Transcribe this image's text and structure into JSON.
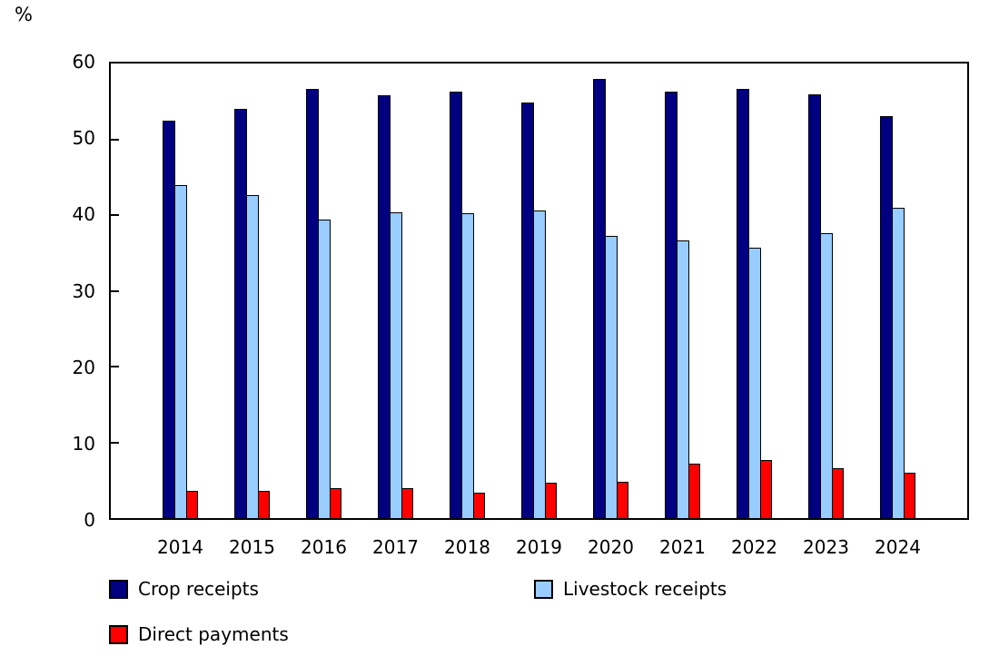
{
  "unit_label": "%",
  "chart_data": {
    "type": "bar",
    "title": "",
    "xlabel": "",
    "ylabel": "%",
    "ylim": [
      0,
      60
    ],
    "yticks": [
      0,
      10,
      20,
      30,
      40,
      50,
      60
    ],
    "grid": false,
    "legend_position": "bottom",
    "categories": [
      "2014",
      "2015",
      "2016",
      "2017",
      "2018",
      "2019",
      "2020",
      "2021",
      "2022",
      "2023",
      "2024"
    ],
    "series": [
      {
        "name": "Crop receipts",
        "color": "#000080",
        "values": [
          52.4,
          54.0,
          56.7,
          55.8,
          56.3,
          54.8,
          58.0,
          56.3,
          56.7,
          55.9,
          53.0
        ]
      },
      {
        "name": "Livestock receipts",
        "color": "#99CCFF",
        "values": [
          44.0,
          42.6,
          39.4,
          40.4,
          40.3,
          40.6,
          37.3,
          36.6,
          35.7,
          37.6,
          41.0
        ]
      },
      {
        "name": "Direct payments",
        "color": "#FF0000",
        "values": [
          3.6,
          3.6,
          4.0,
          3.9,
          3.4,
          4.7,
          4.8,
          7.2,
          7.7,
          6.6,
          6.0
        ]
      }
    ]
  }
}
